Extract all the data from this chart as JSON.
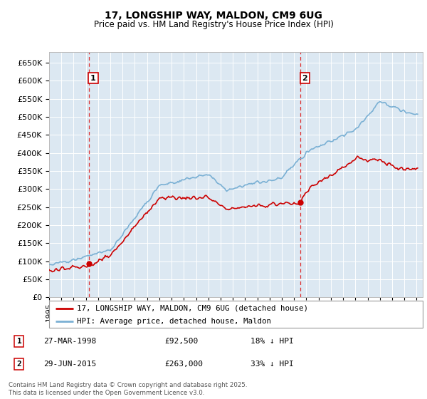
{
  "title": "17, LONGSHIP WAY, MALDON, CM9 6UG",
  "subtitle": "Price paid vs. HM Land Registry's House Price Index (HPI)",
  "ylabel_ticks": [
    0,
    50000,
    100000,
    150000,
    200000,
    250000,
    300000,
    350000,
    400000,
    450000,
    500000,
    550000,
    600000,
    650000
  ],
  "ylim": [
    0,
    680000
  ],
  "xlim_start": 1995,
  "xlim_end": 2025.5,
  "sale1_year": 1998.23,
  "sale1_price": 92500,
  "sale2_year": 2015.49,
  "sale2_price": 263000,
  "sale1_date": "27-MAR-1998",
  "sale1_pct": "18% ↓ HPI",
  "sale2_date": "29-JUN-2015",
  "sale2_pct": "33% ↓ HPI",
  "red_color": "#cc0000",
  "blue_color": "#7ab0d4",
  "bg_color": "#dce8f2",
  "grid_color": "#ffffff",
  "dashed_color": "#dd3333",
  "legend_label_red": "17, LONGSHIP WAY, MALDON, CM9 6UG (detached house)",
  "legend_label_blue": "HPI: Average price, detached house, Maldon",
  "footnote": "Contains HM Land Registry data © Crown copyright and database right 2025.\nThis data is licensed under the Open Government Licence v3.0."
}
